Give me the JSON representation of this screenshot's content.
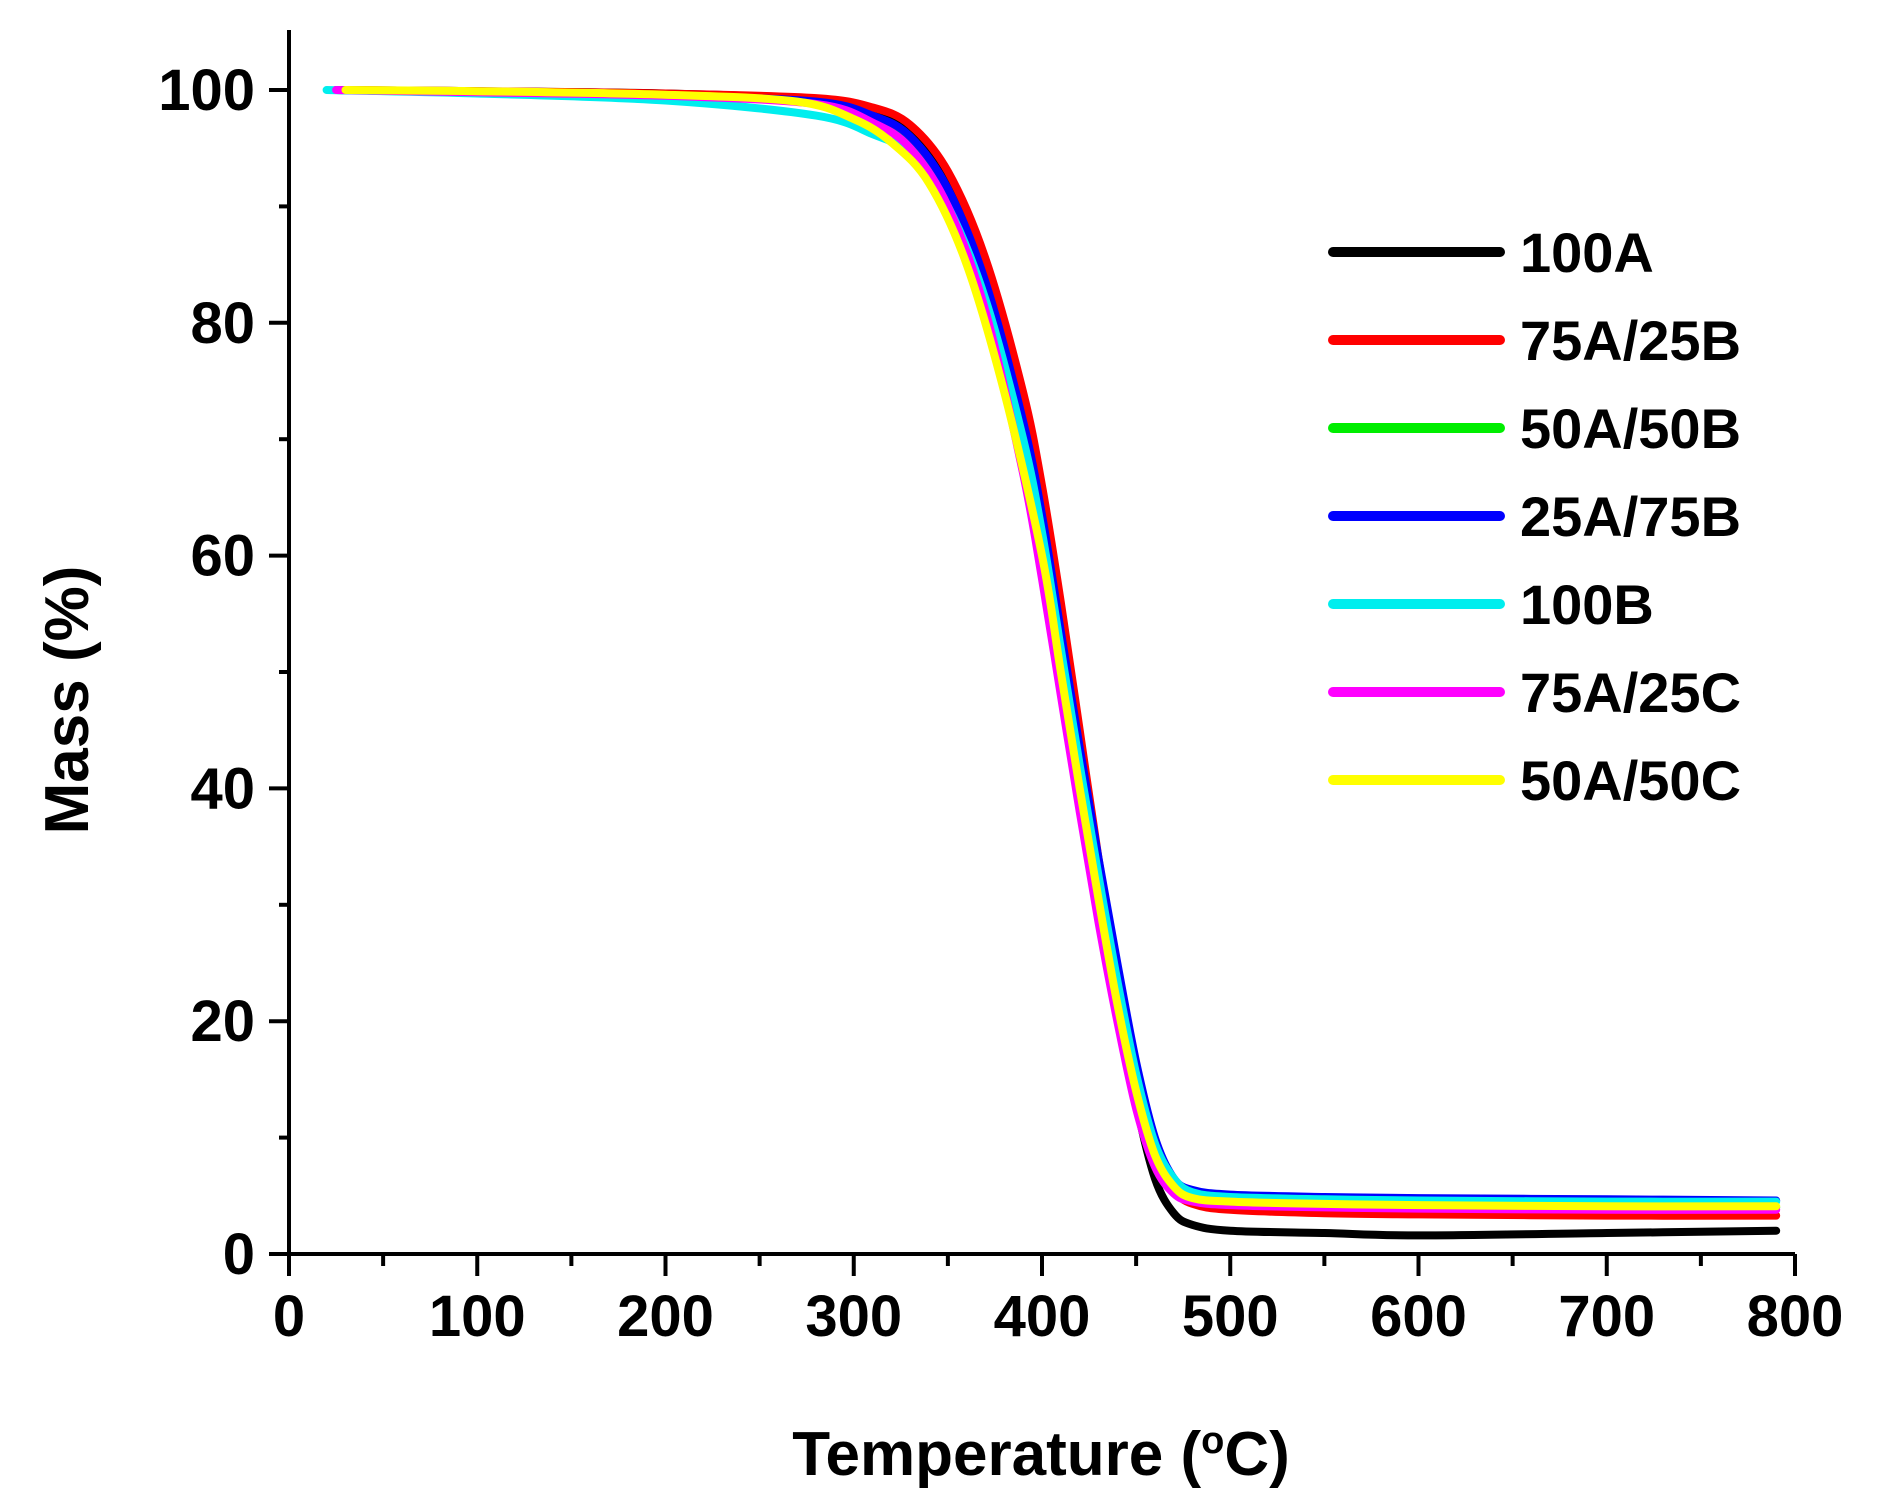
{
  "chart_data": {
    "type": "line",
    "xlabel": "Temperature (",
    "xlabel_sup": "o",
    "xlabel_end": "C)",
    "ylabel": "Mass (%)",
    "xlim": [
      0,
      800
    ],
    "ylim": [
      0,
      100
    ],
    "xticks": [
      0,
      100,
      200,
      300,
      400,
      500,
      600,
      700,
      800
    ],
    "yticks": [
      0,
      20,
      40,
      60,
      80,
      100
    ],
    "grid": false,
    "legend_position": "right",
    "series": [
      {
        "name": "100A",
        "color": "#000000",
        "x": [
          25,
          100,
          200,
          280,
          310,
          330,
          350,
          370,
          390,
          400,
          410,
          420,
          430,
          440,
          450,
          460,
          470,
          480,
          500,
          550,
          600,
          700,
          790
        ],
        "y": [
          100,
          99.9,
          99.7,
          99.2,
          98.2,
          96.5,
          92,
          84,
          72,
          64,
          54,
          43,
          32,
          22,
          13,
          6.5,
          3.5,
          2.5,
          2.0,
          1.8,
          1.6,
          1.8,
          2.0
        ]
      },
      {
        "name": "75A/25B",
        "color": "#ff0000",
        "x": [
          25,
          100,
          200,
          280,
          310,
          330,
          350,
          370,
          390,
          400,
          410,
          420,
          430,
          440,
          450,
          460,
          470,
          480,
          500,
          550,
          600,
          700,
          790
        ],
        "y": [
          100,
          99.9,
          99.7,
          99.3,
          98.5,
          97,
          93,
          85.5,
          74,
          66,
          56,
          45,
          34,
          24,
          15,
          8.5,
          5.5,
          4.3,
          3.8,
          3.5,
          3.4,
          3.3,
          3.3
        ]
      },
      {
        "name": "50A/50B",
        "color": "#00ee00",
        "x": [
          25,
          100,
          200,
          280,
          310,
          330,
          350,
          370,
          390,
          400,
          410,
          420,
          430,
          440,
          450,
          460,
          470,
          480,
          500,
          550,
          600,
          700,
          790
        ],
        "y": [
          100,
          99.8,
          99.5,
          98.9,
          97.5,
          95.5,
          91,
          83,
          71,
          63,
          53,
          42.5,
          32.5,
          23,
          15,
          9,
          6,
          5,
          4.6,
          4.3,
          4.2,
          4.1,
          4.0
        ]
      },
      {
        "name": "25A/75B",
        "color": "#0000ff",
        "x": [
          25,
          100,
          200,
          280,
          310,
          330,
          350,
          370,
          390,
          400,
          410,
          420,
          430,
          440,
          450,
          460,
          470,
          480,
          500,
          550,
          600,
          700,
          790
        ],
        "y": [
          100,
          99.8,
          99.5,
          99.0,
          97.8,
          96,
          91.5,
          83.5,
          71.5,
          63.5,
          53.5,
          43.5,
          34,
          25,
          16.5,
          10,
          6.5,
          5.5,
          5.1,
          4.9,
          4.8,
          4.7,
          4.6
        ]
      },
      {
        "name": "100B",
        "color": "#00eeee",
        "x": [
          20,
          100,
          200,
          280,
          310,
          330,
          350,
          370,
          390,
          400,
          410,
          420,
          430,
          440,
          450,
          460,
          470,
          480,
          500,
          550,
          600,
          700,
          790
        ],
        "y": [
          100,
          99.7,
          99.1,
          97.8,
          96.2,
          94.5,
          90,
          82,
          70,
          62,
          52,
          42,
          32.5,
          23.5,
          15.5,
          9.5,
          6.5,
          5.3,
          4.9,
          4.7,
          4.6,
          4.5,
          4.5
        ]
      },
      {
        "name": "75A/25C",
        "color": "#ff00ff",
        "x": [
          25,
          100,
          200,
          280,
          310,
          330,
          350,
          370,
          390,
          400,
          410,
          420,
          430,
          440,
          450,
          460,
          470,
          480,
          500,
          550,
          600,
          700,
          790
        ],
        "y": [
          100,
          99.8,
          99.5,
          98.8,
          97.2,
          95,
          90,
          81,
          67,
          58,
          48,
          38,
          28.5,
          20,
          12.5,
          7.5,
          5.2,
          4.5,
          4.2,
          4.0,
          3.9,
          3.8,
          3.8
        ]
      },
      {
        "name": "50A/50C",
        "color": "#ffff00",
        "x": [
          30,
          100,
          200,
          270,
          300,
          320,
          340,
          360,
          380,
          400,
          410,
          420,
          430,
          440,
          450,
          460,
          470,
          480,
          500,
          550,
          600,
          700,
          790
        ],
        "y": [
          100,
          99.9,
          99.6,
          99.0,
          97.5,
          95.5,
          92,
          85,
          74,
          60,
          50,
          40,
          30.5,
          21.5,
          14,
          8.5,
          5.8,
          4.8,
          4.5,
          4.3,
          4.2,
          4.1,
          4.1
        ]
      }
    ]
  }
}
